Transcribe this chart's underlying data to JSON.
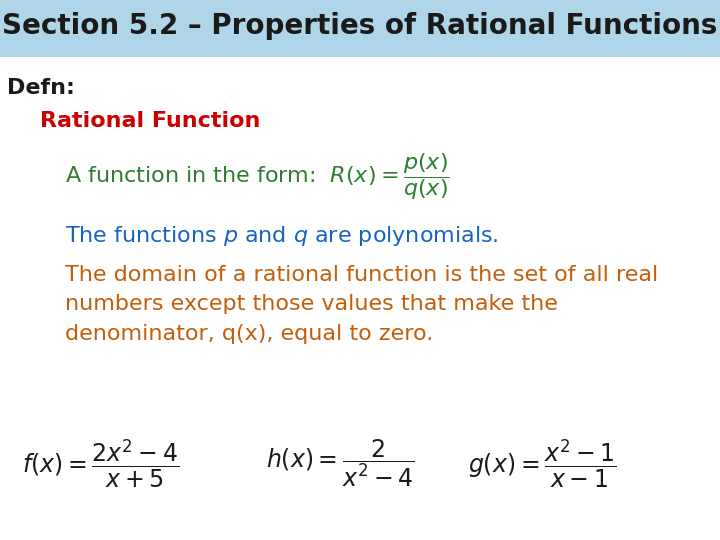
{
  "title": "Section 5.2 – Properties of Rational Functions",
  "title_bg": "#aed6e8",
  "title_color": "#1a1a1a",
  "title_fontsize": 20,
  "bg_color": "#ffffff",
  "defn_label": "Defn:",
  "defn_color": "#1a1a1a",
  "defn_fontsize": 16,
  "rf_label": "Rational Function",
  "rf_color": "#cc0000",
  "rf_fontsize": 16,
  "line1_text": "A function in the form:  ",
  "line1_formula": "$R(x) = \\dfrac{p(x)}{q(x)}$",
  "line1_color": "#2e7d32",
  "line1_fontsize": 16,
  "line2_text": "The functions $p$ and $q$ are polynomials.",
  "line2_color": "#1565c0",
  "line2_fontsize": 16,
  "line3_text": "The domain of a rational function is the set of all real\nnumbers except those values that make the\ndenominator, q(x), equal to zero.",
  "line3_color": "#c45e0a",
  "line3_fontsize": 16,
  "formula1": "$f(x) = \\dfrac{2x^2 - 4}{x + 5}$",
  "formula2": "$h(x) = \\dfrac{2}{x^2 - 4}$",
  "formula3": "$g(x) = \\dfrac{x^2 - 1}{x - 1}$",
  "formula_color": "#1a1a1a",
  "formula_fontsize": 17
}
